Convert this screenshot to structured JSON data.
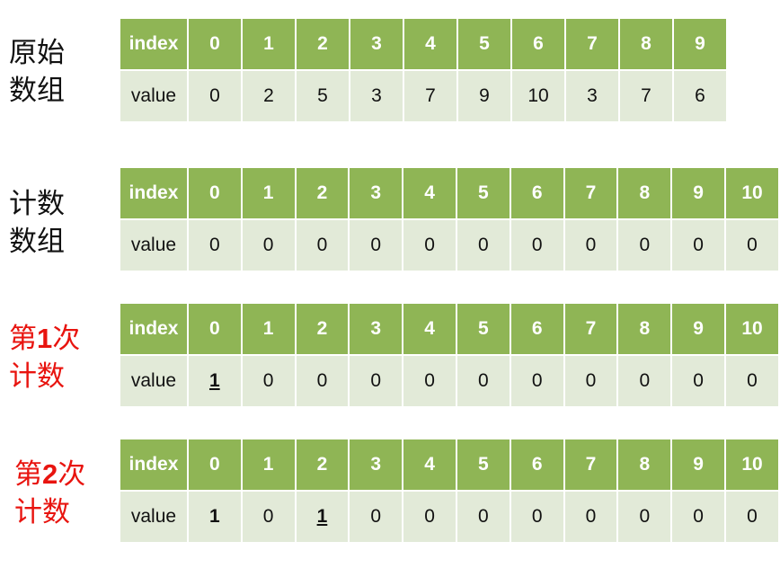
{
  "labels": {
    "original": [
      "原始",
      "数组"
    ],
    "count": [
      "计数",
      "数组"
    ],
    "first": {
      "pre": "第",
      "num": "1",
      "post": "次",
      "line2": "计数"
    },
    "second": {
      "pre": "第",
      "num": "2",
      "post": "次",
      "line2": "计数"
    }
  },
  "row_header": {
    "index": "index",
    "value": "value"
  },
  "tables": {
    "original": {
      "index": [
        "0",
        "1",
        "2",
        "3",
        "4",
        "5",
        "6",
        "7",
        "8",
        "9"
      ],
      "value": [
        "0",
        "2",
        "5",
        "3",
        "7",
        "9",
        "10",
        "3",
        "7",
        "6"
      ]
    },
    "count": {
      "index": [
        "0",
        "1",
        "2",
        "3",
        "4",
        "5",
        "6",
        "7",
        "8",
        "9",
        "10"
      ],
      "value": [
        "0",
        "0",
        "0",
        "0",
        "0",
        "0",
        "0",
        "0",
        "0",
        "0",
        "0"
      ]
    },
    "first": {
      "index": [
        "0",
        "1",
        "2",
        "3",
        "4",
        "5",
        "6",
        "7",
        "8",
        "9",
        "10"
      ],
      "value": [
        "1",
        "0",
        "0",
        "0",
        "0",
        "0",
        "0",
        "0",
        "0",
        "0",
        "0"
      ]
    },
    "second": {
      "index": [
        "0",
        "1",
        "2",
        "3",
        "4",
        "5",
        "6",
        "7",
        "8",
        "9",
        "10"
      ],
      "value": [
        "1",
        "0",
        "1",
        "0",
        "0",
        "0",
        "0",
        "0",
        "0",
        "0",
        "0"
      ]
    }
  },
  "colors": {
    "header_bg": "#8fb555",
    "value_bg": "#e2ead8",
    "highlight": "#e8140f"
  }
}
